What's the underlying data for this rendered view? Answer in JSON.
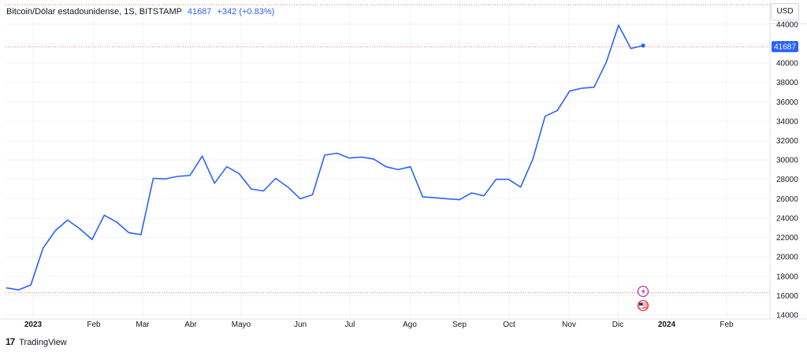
{
  "header": {
    "symbol": "Bitcoin/Dólar estadounidense, 1S, BITSTAMP",
    "last_value": "41687",
    "change": "+342 (+0.83%)"
  },
  "currency_button": "USD",
  "price_badge": "41687",
  "branding": {
    "logo_mark": "17",
    "name": "TradingView"
  },
  "event_icons": [
    "lightning-event-icon",
    "us-flag-event-icon"
  ],
  "colors": {
    "line": "#2962ff",
    "badge_bg": "#2962ff",
    "dashed_line": "#e57373",
    "grid": "#f0f3fa"
  },
  "chart_data": {
    "type": "line",
    "series": [
      {
        "values": [
          16800,
          16600,
          17100,
          20900,
          22700,
          23800,
          22900,
          21800,
          24300,
          23600,
          22500,
          22300,
          28100,
          28050,
          28300,
          28400,
          30400,
          27600,
          29300,
          28600,
          27000,
          26800,
          28100,
          27200,
          26000,
          26400,
          30500,
          30700,
          30200,
          30300,
          30100,
          29300,
          29000,
          29300,
          26200,
          26100,
          26000,
          25900,
          26600,
          26300,
          28000,
          28000,
          27200,
          30100,
          34500,
          35100,
          37100,
          37400,
          37500,
          40100,
          43900,
          41500,
          41800
        ]
      }
    ],
    "x_labels": [
      "2023",
      "Feb",
      "Mar",
      "Abr",
      "Mayo",
      "Jun",
      "Jul",
      "Ago",
      "Sep",
      "Oct",
      "Nov",
      "Dic",
      "2024",
      "Feb"
    ],
    "y_ticks": [
      14000,
      16000,
      18000,
      20000,
      22000,
      24000,
      26000,
      28000,
      30000,
      32000,
      34000,
      36000,
      38000,
      40000,
      42000,
      44000
    ],
    "ylim": [
      13600,
      46500
    ],
    "last_value": 41687,
    "reference_lines": [
      16300,
      46000
    ]
  }
}
